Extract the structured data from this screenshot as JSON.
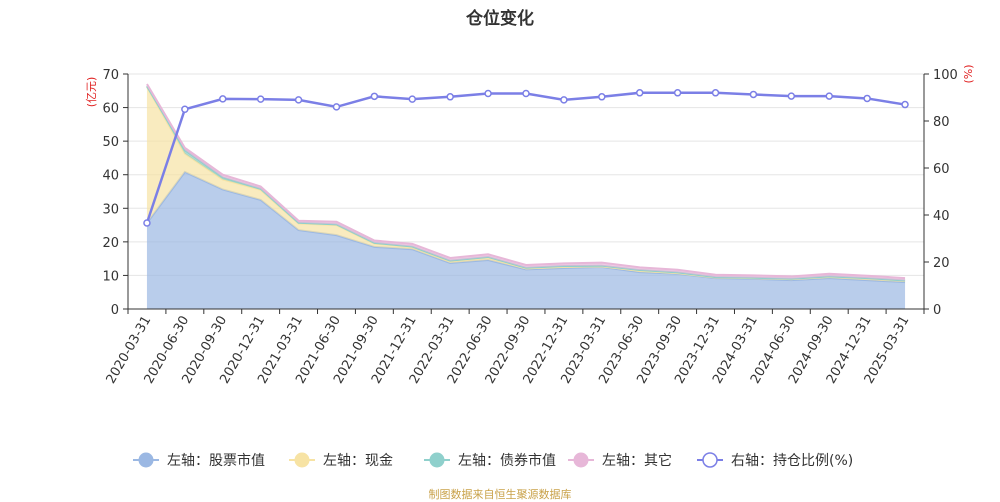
{
  "title": "仓位变化",
  "footer": "制图数据来自恒生聚源数据库",
  "colors": {
    "stock": "#9bb8e3",
    "cash": "#f7e3a4",
    "bond": "#8fd0cc",
    "other": "#e7b7d8",
    "ratio": "#7b7fe6",
    "unit": "#e02020",
    "axis": "#333333",
    "grid": "#e5e5e5"
  },
  "chart_data": {
    "type": "area",
    "title": "仓位变化",
    "left_unit": "(亿元)",
    "right_unit": "(%)",
    "ylim_left": [
      0,
      70
    ],
    "ylim_right": [
      0,
      100
    ],
    "yticks_left": [
      "0",
      "10",
      "20",
      "30",
      "40",
      "50",
      "60",
      "70"
    ],
    "yticks_right": [
      "0",
      "20",
      "40",
      "60",
      "80",
      "100"
    ],
    "categories": [
      "2020-03-31",
      "2020-06-30",
      "2020-09-30",
      "2020-12-31",
      "2021-03-31",
      "2021-06-30",
      "2021-09-30",
      "2021-12-31",
      "2022-03-31",
      "2022-06-30",
      "2022-09-30",
      "2022-12-31",
      "2023-03-31",
      "2023-06-30",
      "2023-09-30",
      "2023-12-31",
      "2024-03-31",
      "2024-06-30",
      "2024-09-30",
      "2024-12-31",
      "2025-03-31"
    ],
    "series": [
      {
        "name": "左轴：股票市值",
        "axis": "left",
        "stacked": true,
        "values": [
          25.6,
          40.8,
          35.6,
          32.5,
          23.5,
          22.0,
          18.5,
          17.8,
          13.7,
          14.6,
          11.8,
          12.2,
          12.5,
          11.0,
          10.5,
          9.2,
          9.0,
          8.6,
          9.2,
          8.6,
          8.0
        ]
      },
      {
        "name": "左轴：现金",
        "axis": "left",
        "stacked": true,
        "values": [
          40.6,
          5.5,
          3.0,
          3.0,
          2.0,
          3.0,
          1.0,
          0.6,
          0.5,
          0.7,
          0.3,
          0.4,
          0.2,
          0.4,
          0.2,
          0.2,
          0.2,
          0.3,
          0.4,
          0.5,
          0.4
        ]
      },
      {
        "name": "左轴：债券市值",
        "axis": "left",
        "stacked": true,
        "values": [
          0.2,
          1.0,
          0.6,
          0.3,
          0.2,
          0.2,
          0.2,
          0.2,
          0.2,
          0.2,
          0.2,
          0.2,
          0.2,
          0.2,
          0.2,
          0.1,
          0.1,
          0.1,
          0.1,
          0.1,
          0.1
        ]
      },
      {
        "name": "左轴：其它",
        "axis": "left",
        "stacked": true,
        "values": [
          0.6,
          0.7,
          0.8,
          0.7,
          0.6,
          0.8,
          0.7,
          0.8,
          0.8,
          0.8,
          0.8,
          0.8,
          0.9,
          0.8,
          0.8,
          0.7,
          0.7,
          0.7,
          0.8,
          0.7,
          0.7
        ]
      },
      {
        "name": "右轴：持仓比例(%)",
        "axis": "right",
        "type": "line",
        "values": [
          36.6,
          85.0,
          89.4,
          89.3,
          89.0,
          86.0,
          90.5,
          89.3,
          90.3,
          91.7,
          91.7,
          89.0,
          90.3,
          92.0,
          92.0,
          92.0,
          91.3,
          90.6,
          90.6,
          89.6,
          87.0
        ]
      }
    ]
  }
}
